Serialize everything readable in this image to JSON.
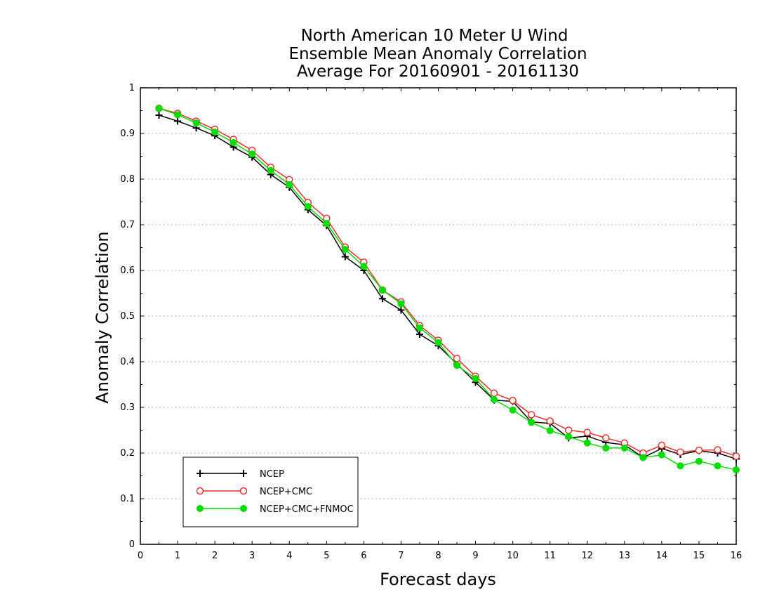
{
  "chart_data": {
    "type": "line",
    "title": [
      "North American 10 Meter U Wind",
      "Ensemble Mean Anomaly Correlation",
      "Average For 20160901 - 20161130"
    ],
    "xlabel": "Forecast days",
    "ylabel": "Anomaly Correlation",
    "xlim": [
      0,
      16
    ],
    "ylim": [
      0,
      1
    ],
    "xticks": [
      "0",
      "1",
      "2",
      "3",
      "4",
      "5",
      "6",
      "7",
      "8",
      "9",
      "10",
      "11",
      "12",
      "13",
      "14",
      "15",
      "16"
    ],
    "yticks": [
      "0",
      "0.1",
      "0.2",
      "0.3",
      "0.4",
      "0.5",
      "0.6",
      "0.7",
      "0.8",
      "0.9",
      "1"
    ],
    "grid": "horizontal-dotted",
    "legend_position": "bottom-left",
    "x": [
      0.5,
      1,
      1.5,
      2,
      2.5,
      3,
      3.5,
      4,
      4.5,
      5,
      5.5,
      6,
      6.5,
      7,
      7.5,
      8,
      8.5,
      9,
      9.5,
      10,
      10.5,
      11,
      11.5,
      12,
      12.5,
      13,
      13.5,
      14,
      14.5,
      15,
      15.5,
      16
    ],
    "series": [
      {
        "name": "NCEP",
        "color": "#000000",
        "marker": "plus",
        "values": [
          0.94,
          0.927,
          0.912,
          0.895,
          0.87,
          0.848,
          0.81,
          0.782,
          0.733,
          0.698,
          0.63,
          0.6,
          0.538,
          0.513,
          0.46,
          0.435,
          0.395,
          0.355,
          0.316,
          0.313,
          0.268,
          0.265,
          0.233,
          0.237,
          0.223,
          0.218,
          0.19,
          0.21,
          0.197,
          0.205,
          0.2,
          0.187
        ]
      },
      {
        "name": "NCEP+CMC",
        "color": "#e8312f",
        "marker": "open-circle",
        "values": [
          0.955,
          0.944,
          0.927,
          0.909,
          0.887,
          0.863,
          0.826,
          0.799,
          0.749,
          0.714,
          0.651,
          0.618,
          0.557,
          0.531,
          0.479,
          0.447,
          0.407,
          0.368,
          0.331,
          0.315,
          0.284,
          0.27,
          0.25,
          0.245,
          0.233,
          0.222,
          0.2,
          0.217,
          0.202,
          0.206,
          0.207,
          0.193
        ]
      },
      {
        "name": "NCEP+CMC+FNMOC",
        "color": "#00dd00",
        "marker": "filled-circle",
        "values": [
          0.955,
          0.941,
          0.923,
          0.903,
          0.88,
          0.855,
          0.819,
          0.788,
          0.74,
          0.703,
          0.646,
          0.609,
          0.557,
          0.527,
          0.474,
          0.442,
          0.392,
          0.363,
          0.317,
          0.294,
          0.267,
          0.249,
          0.236,
          0.222,
          0.211,
          0.211,
          0.19,
          0.196,
          0.172,
          0.182,
          0.172,
          0.163
        ]
      }
    ]
  }
}
